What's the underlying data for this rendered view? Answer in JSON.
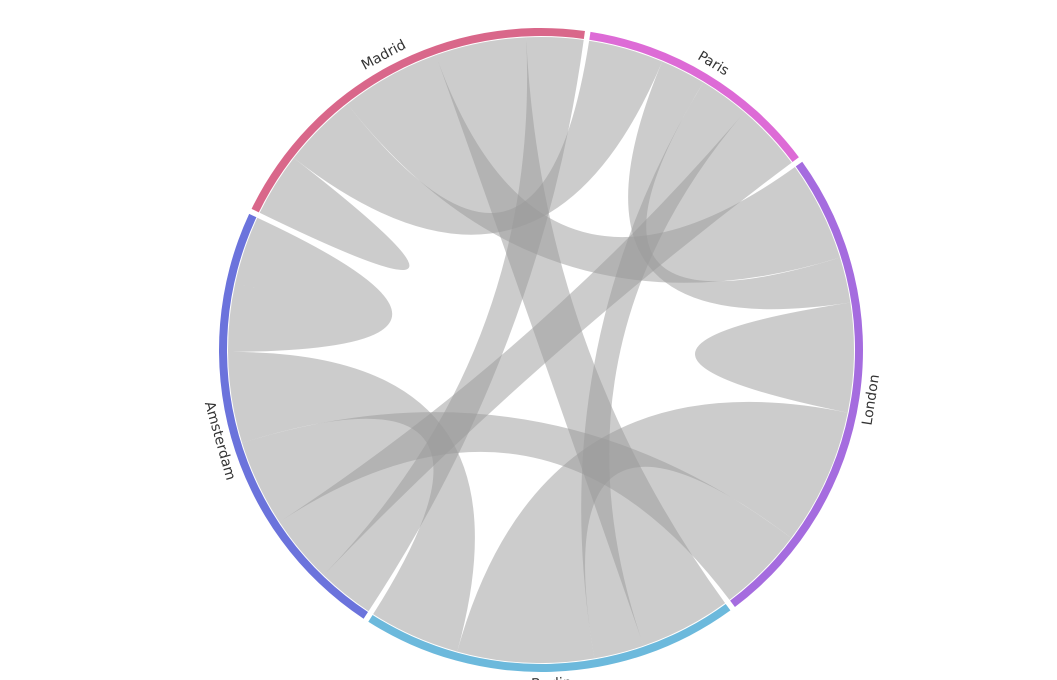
{
  "chart_data": {
    "type": "chord",
    "title": "",
    "names": [
      "Madrid",
      "Paris",
      "London",
      "Berlin",
      "Amsterdam"
    ],
    "colors": [
      "#d9678a",
      "#dd6bd6",
      "#a56cdf",
      "#6cb9dc",
      "#6b73dc"
    ],
    "ribbon_color": "#9a9a9a",
    "flows": [
      {
        "source": "Madrid",
        "target": "Madrid",
        "value": 14
      },
      {
        "source": "Madrid",
        "target": "Paris",
        "value": 33
      },
      {
        "source": "Madrid",
        "target": "London",
        "value": 44
      },
      {
        "source": "Madrid",
        "target": "Berlin",
        "value": 40
      },
      {
        "source": "Madrid",
        "target": "Amsterdam",
        "value": 25
      },
      {
        "source": "Paris",
        "target": "London",
        "value": 20
      },
      {
        "source": "Paris",
        "target": "Berlin",
        "value": 22
      },
      {
        "source": "Paris",
        "target": "Amsterdam",
        "value": 30
      },
      {
        "source": "London",
        "target": "London",
        "value": 24
      },
      {
        "source": "London",
        "target": "Berlin",
        "value": 60
      },
      {
        "source": "London",
        "target": "Amsterdam",
        "value": 38
      },
      {
        "source": "Berlin",
        "target": "Amsterdam",
        "value": 40
      },
      {
        "source": "Amsterdam",
        "target": "Amsterdam",
        "value": 30
      }
    ]
  }
}
